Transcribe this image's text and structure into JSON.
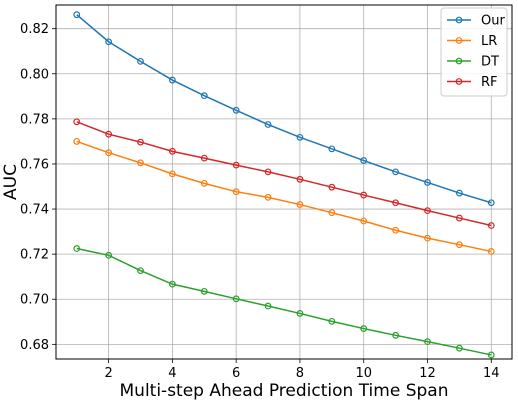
{
  "chart_data": {
    "type": "line",
    "title": "",
    "xlabel": "Multi-step Ahead Prediction Time Span",
    "ylabel": "AUC",
    "x": [
      1,
      2,
      3,
      4,
      5,
      6,
      7,
      8,
      9,
      10,
      11,
      12,
      13,
      14
    ],
    "xlim": [
      0.35,
      14.65
    ],
    "ylim": [
      0.6735,
      0.8305
    ],
    "xticks": [
      2,
      4,
      6,
      8,
      10,
      12,
      14
    ],
    "yticks": [
      0.68,
      0.7,
      0.72,
      0.74,
      0.76,
      0.78,
      0.8,
      0.82
    ],
    "xtick_labels": [
      "2",
      "4",
      "6",
      "8",
      "10",
      "12",
      "14"
    ],
    "ytick_labels": [
      "0.68",
      "0.70",
      "0.72",
      "0.74",
      "0.76",
      "0.78",
      "0.80",
      "0.82"
    ],
    "grid": true,
    "legend_position": "top-right",
    "series": [
      {
        "name": "Our",
        "color": "#1f77b4",
        "marker": "open-circle",
        "values": [
          0.8262,
          0.8142,
          0.8055,
          0.7972,
          0.7903,
          0.7838,
          0.7775,
          0.7718,
          0.7667,
          0.7615,
          0.7565,
          0.7518,
          0.7471,
          0.7428
        ]
      },
      {
        "name": "LR",
        "color": "#ff7f0e",
        "marker": "open-circle",
        "values": [
          0.77,
          0.765,
          0.7605,
          0.7556,
          0.7514,
          0.7477,
          0.7452,
          0.742,
          0.7384,
          0.7347,
          0.7306,
          0.7271,
          0.7242,
          0.7212
        ]
      },
      {
        "name": "DT",
        "color": "#2ca02c",
        "marker": "open-circle",
        "values": [
          0.7225,
          0.7195,
          0.7127,
          0.7067,
          0.7035,
          0.7002,
          0.697,
          0.6937,
          0.6902,
          0.687,
          0.684,
          0.6812,
          0.6783,
          0.6753
        ]
      },
      {
        "name": "RF",
        "color": "#d62728",
        "marker": "open-circle",
        "values": [
          0.7787,
          0.7732,
          0.7697,
          0.7656,
          0.7626,
          0.7595,
          0.7565,
          0.7532,
          0.7497,
          0.7462,
          0.7428,
          0.7393,
          0.736,
          0.7327
        ]
      }
    ]
  }
}
